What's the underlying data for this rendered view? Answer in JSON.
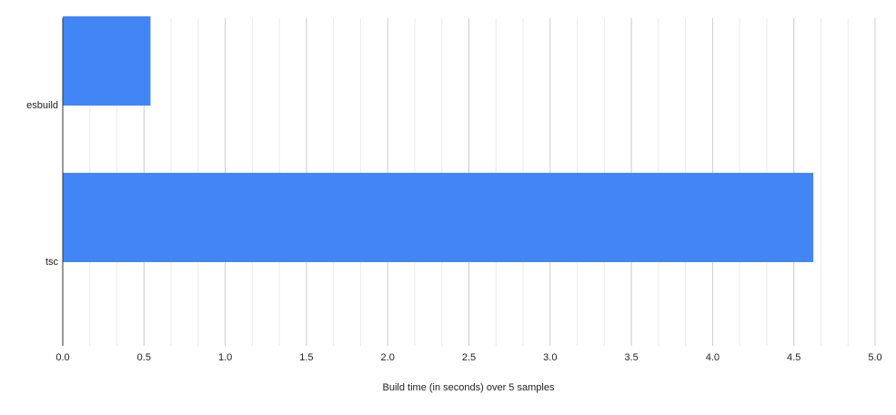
{
  "chart_data": {
    "type": "hbar",
    "x_label": "Build time (in seconds) over 5 samples",
    "categories": [
      "esbuild",
      "tsc"
    ],
    "values": [
      0.54,
      4.62
    ],
    "color": "#4285f4",
    "xlim": [
      0,
      5
    ],
    "xticks": [
      {
        "value": 0,
        "label": "0.0"
      },
      0.5,
      {
        "value": 1,
        "label": "1.0"
      },
      1.5,
      {
        "value": 2,
        "label": "2.0"
      },
      2.5,
      {
        "value": 3,
        "label": "3.0"
      },
      3.5,
      {
        "value": 4,
        "label": "4.0"
      },
      4.5,
      {
        "value": 5,
        "label": "5.0"
      }
    ],
    "grid": true
  }
}
